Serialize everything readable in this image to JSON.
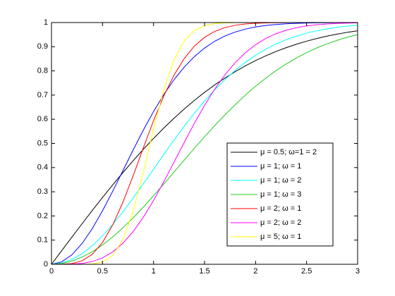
{
  "chart_data": {
    "type": "line",
    "x": [
      0,
      0.1,
      0.2,
      0.3,
      0.4,
      0.5,
      0.6,
      0.7,
      0.8,
      0.9,
      1,
      1.1,
      1.2,
      1.3,
      1.4,
      1.5,
      1.6,
      1.7,
      1.8,
      1.9,
      2,
      2.1,
      2.2,
      2.3,
      2.4,
      2.5,
      2.6,
      2.7,
      2.8,
      2.9,
      3
    ],
    "series": [
      {
        "name": "μ = 0.5; ω=1 = 2",
        "color": "#000000",
        "values": [
          0,
          0.0564,
          0.1125,
          0.168,
          0.2227,
          0.2763,
          0.3286,
          0.3794,
          0.4284,
          0.4755,
          0.5205,
          0.5633,
          0.6039,
          0.642,
          0.6778,
          0.7112,
          0.7421,
          0.7707,
          0.7969,
          0.8209,
          0.8427,
          0.8624,
          0.8802,
          0.8961,
          0.9103,
          0.9229,
          0.934,
          0.9438,
          0.9523,
          0.9597,
          0.9661
        ]
      },
      {
        "name": "μ = 1; ω = 1",
        "color": "#0000ff",
        "values": [
          0,
          0.01,
          0.0392,
          0.0861,
          0.1479,
          0.2212,
          0.3023,
          0.3874,
          0.4727,
          0.5551,
          0.6321,
          0.7018,
          0.7631,
          0.8155,
          0.8591,
          0.8946,
          0.9227,
          0.9444,
          0.9608,
          0.9729,
          0.9817,
          0.9878,
          0.9921,
          0.995,
          0.9968,
          0.9981,
          0.9988,
          0.9993,
          0.9996,
          0.9998,
          0.9999
        ]
      },
      {
        "name": "μ = 1; ω = 2",
        "color": "#00ffff",
        "values": [
          0,
          0.005,
          0.0198,
          0.044,
          0.0769,
          0.1175,
          0.1647,
          0.2173,
          0.2739,
          0.333,
          0.3935,
          0.4539,
          0.5132,
          0.5704,
          0.6247,
          0.6753,
          0.722,
          0.7643,
          0.8021,
          0.8355,
          0.8647,
          0.8897,
          0.9111,
          0.929,
          0.9439,
          0.9561,
          0.966,
          0.9739,
          0.9802,
          0.9851,
          0.9889
        ]
      },
      {
        "name": "μ = 1; ω = 3",
        "color": "#22cc22",
        "values": [
          0,
          0.0033,
          0.0132,
          0.0296,
          0.0519,
          0.08,
          0.1131,
          0.1507,
          0.1921,
          0.2366,
          0.2835,
          0.3319,
          0.3812,
          0.4307,
          0.4797,
          0.5276,
          0.574,
          0.6184,
          0.6604,
          0.6998,
          0.7364,
          0.7701,
          0.8008,
          0.8286,
          0.8534,
          0.8755,
          0.895,
          0.912,
          0.9267,
          0.9394,
          0.9502
        ]
      },
      {
        "name": "μ = 2; ω = 1",
        "color": "#ff0000",
        "values": [
          0,
          0.0002,
          0.003,
          0.0144,
          0.0415,
          0.0902,
          0.1628,
          0.2569,
          0.3661,
          0.4815,
          0.594,
          0.6959,
          0.7822,
          0.8509,
          0.9024,
          0.9389,
          0.9634,
          0.9791,
          0.9885,
          0.994,
          0.997,
          0.9986,
          0.9993,
          0.9997,
          0.9999,
          1,
          1,
          1,
          1,
          1,
          1
        ]
      },
      {
        "name": "μ = 2; ω = 2",
        "color": "#ff00ff",
        "values": [
          0,
          0,
          0.0008,
          0.0038,
          0.0115,
          0.0265,
          0.0512,
          0.0872,
          0.1352,
          0.1948,
          0.2642,
          0.341,
          0.4219,
          0.5036,
          0.5831,
          0.6575,
          0.7248,
          0.7838,
          0.834,
          0.8753,
          0.9084,
          0.9342,
          0.9538,
          0.9683,
          0.9787,
          0.986,
          0.991,
          0.9943,
          0.9965,
          0.9979,
          0.9988
        ]
      },
      {
        "name": "μ = 5; ω = 1",
        "color": "#ffff00",
        "values": [
          0,
          0,
          0,
          0.0001,
          0.0014,
          0.0091,
          0.0364,
          0.1023,
          0.2194,
          0.3809,
          0.5595,
          0.7216,
          0.8445,
          0.9234,
          0.9667,
          0.9872,
          0.9957,
          0.9987,
          0.9997,
          0.9999,
          1,
          1,
          1,
          1,
          1,
          1,
          1,
          1,
          1,
          1,
          1
        ]
      }
    ],
    "xlim": [
      0,
      3
    ],
    "xticks": [
      0,
      0.5,
      1,
      1.5,
      2,
      2.5,
      3
    ],
    "ylim": [
      0,
      1
    ],
    "yticks": [
      0,
      0.1,
      0.2,
      0.3,
      0.4,
      0.5,
      0.6,
      0.7,
      0.8,
      0.9,
      1
    ],
    "legend": "lower right"
  }
}
